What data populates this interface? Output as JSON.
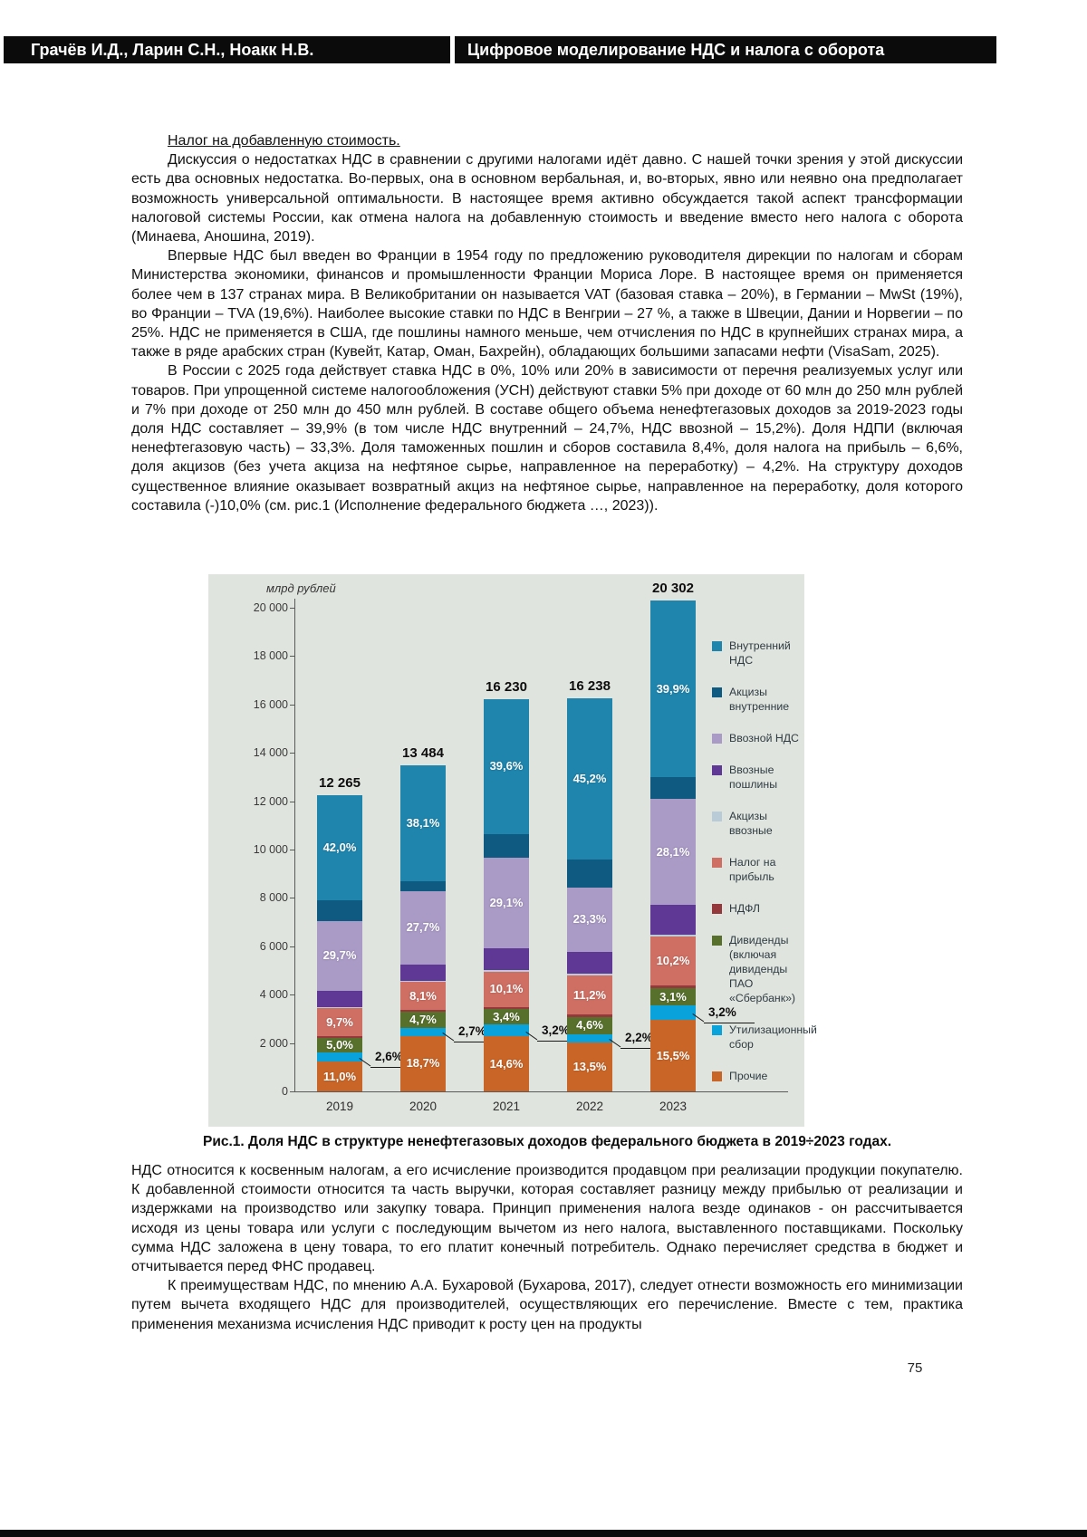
{
  "header": {
    "authors": "Грачёв И.Д., Ларин С.Н., Ноакк Н.В.",
    "title": "Цифровое моделирование НДС и налога с оборота"
  },
  "article": {
    "heading": "Налог на добавленную стоимость.",
    "paragraphs": [
      "Дискуссия о недостатках НДС в сравнении с другими налогами идёт давно. С нашей точки зрения у этой дискуссии есть два основных недостатка. Во-первых, она в основном вербальная, и, во-вторых, явно или неявно она предполагает возможность универсальной оптимальности. В настоящее время активно обсуждается такой аспект трансформации налоговой системы России, как отмена налога на добавленную стоимость и введение вместо него налога с оборота (Минаева, Аношина, 2019).",
      "Впервые НДС был введен во Франции в 1954 году по предложению руководителя дирекции по налогам и сборам Министерства экономики, финансов и промышленности Франции Мориса Лоре. В настоящее время он применяется более чем в 137 странах мира. В Великобритании он называется VAT (базовая ставка – 20%), в Германии – MwSt (19%), во Франции – TVA (19,6%). Наиболее высокие ставки по НДС в Венгрии – 27 %, а также в Швеции, Дании и Норвегии – по 25%. НДС не применяется в США, где пошлины намного меньше, чем отчисления по НДС в крупнейших странах мира, а также в ряде арабских стран (Кувейт, Катар, Оман, Бахрейн), обладающих большими запасами нефти (VisaSam, 2025).",
      "В России с 2025 года действует ставка НДС в 0%, 10% или 20% в зависимости от перечня реализуемых услуг или товаров. При упрощенной системе налогообложения (УСН) действуют ставки 5% при доходе от 60 млн до 250 млн рублей и 7% при доходе от 250 млн до 450 млн рублей. В составе общего объема ненефтегазовых доходов за 2019-2023 годы доля НДС составляет – 39,9% (в том числе НДС внутренний – 24,7%, НДС ввозной – 15,2%). Доля НДПИ (включая ненефтегазовую часть) – 33,3%. Доля таможенных пошлин и сборов составила 8,4%, доля налога на прибыль – 6,6%, доля акцизов (без учета акциза на нефтяное сырье, направленное на переработку) – 4,2%. На структуру доходов существенное влияние оказывает возвратный акциз на нефтяное сырье, направленное на переработку, доля которого составила (-)10,0% (см. рис.1 (Исполнение федерального бюджета …, 2023))."
    ],
    "paragraphs_after": [
      "НДС относится к косвенным налогам, а его исчисление производится продавцом при реализации продукции покупателю. К добавленной стоимости относится та часть выручки, которая составляет разницу между прибылью от реализации и издержками на производство или закупку товара. Принцип применения налога везде одинаков - он рассчитывается исходя из цены товара или услуги с последующим вычетом из него налога, выставленного поставщиками. Поскольку сумма НДС заложена в цену товара, то его платит конечный потребитель. Однако перечисляет средства в бюджет и отчитывается перед ФНС продавец.",
      "К преимуществам НДС, по мнению А.А. Бухаровой (Бухарова, 2017), следует отнести возможность его минимизации путем вычета входящего НДС для производителей, осуществляющих его перечисление. Вместе с тем, практика применения механизма исчисления НДС приводит к росту цен на продукты"
    ]
  },
  "figure": {
    "caption": "Рис.1. Доля НДС в структуре ненефтегазовых доходов федерального бюджета в 2019÷2023 годах."
  },
  "page_number": "75",
  "chart_data": {
    "type": "bar",
    "stacked": true,
    "ylabel": "млрд рублей",
    "ylim": [
      0,
      20000
    ],
    "grid": false,
    "legend_position": "right",
    "yticks": [
      {
        "label": "0",
        "v": 0
      },
      {
        "label": "2 000",
        "v": 2000
      },
      {
        "label": "4 000",
        "v": 4000
      },
      {
        "label": "6 000",
        "v": 6000
      },
      {
        "label": "8 000",
        "v": 8000
      },
      {
        "label": "10 000",
        "v": 10000
      },
      {
        "label": "12 000",
        "v": 12000
      },
      {
        "label": "14 000",
        "v": 14000
      },
      {
        "label": "16 000",
        "v": 16000
      },
      {
        "label": "18 000",
        "v": 18000
      },
      {
        "label": "20 000",
        "v": 20000
      }
    ],
    "categories": [
      "2019",
      "2020",
      "2021",
      "2022",
      "2023"
    ],
    "totals": [
      "12 265",
      "13 484",
      "16 230",
      "16 238",
      "20 302"
    ],
    "total_values": [
      12265,
      13484,
      16230,
      16238,
      20302
    ],
    "series": [
      {
        "name": "Внутренний НДС",
        "color": "#1f85ad",
        "shares": [
          35.5,
          35.5,
          34.5,
          41.0,
          36.0
        ],
        "labels": [
          "42,0%",
          "38,1%",
          "39,6%",
          "45,2%",
          "39,9%"
        ]
      },
      {
        "name": "Акцизы внутренние",
        "color": "#0e5a80",
        "shares": [
          7.0,
          3.0,
          6.0,
          7.0,
          4.5
        ],
        "labels": null
      },
      {
        "name": "Ввозной НДС",
        "color": "#a99ac6",
        "shares": [
          23.5,
          22.5,
          23.0,
          16.5,
          21.5
        ],
        "labels": [
          "29,7%",
          "27,7%",
          "29,1%",
          "23,3%",
          "28,1%"
        ]
      },
      {
        "name": "Ввозные пошлины",
        "color": "#5f3795",
        "shares": [
          5.5,
          5.0,
          5.5,
          5.5,
          6.0
        ],
        "labels": null
      },
      {
        "name": "Акцизы ввозные",
        "color": "#b9cbd6",
        "shares": [
          0.5,
          0.5,
          0.5,
          0.5,
          0.5
        ],
        "labels": null
      },
      {
        "name": "Налог на прибыль",
        "color": "#cf6f63",
        "shares": [
          9.5,
          8.5,
          9.0,
          10.0,
          10.0
        ],
        "labels": [
          "9,7%",
          "8,1%",
          "10,1%",
          "11,2%",
          "10,2%"
        ]
      },
      {
        "name": "НДФЛ",
        "color": "#94383c",
        "shares": [
          0.5,
          0.5,
          0.5,
          0.5,
          0.5
        ],
        "labels": null
      },
      {
        "name": "Дивиденды (включая дивиденды ПАО «Сбербанк»)",
        "color": "#57712c",
        "shares": [
          5.0,
          5.0,
          4.0,
          4.5,
          3.5
        ],
        "labels": [
          "5,0%",
          "4,7%",
          "3,4%",
          "4,6%",
          "3,1%"
        ]
      },
      {
        "name": "Утилизационный сбор",
        "color": "#0aa2da",
        "shares": [
          3.0,
          2.5,
          3.0,
          2.0,
          3.0
        ],
        "labels": null,
        "callout_labels": [
          "2,6%",
          "2,7%",
          "3,2%",
          "2,2%",
          "3,2%"
        ]
      },
      {
        "name": "Прочие",
        "color": "#c96527",
        "shares": [
          10.0,
          17.0,
          14.0,
          12.5,
          14.5
        ],
        "labels": [
          "11,0%",
          "18,7%",
          "14,6%",
          "13,5%",
          "15,5%"
        ]
      }
    ]
  }
}
